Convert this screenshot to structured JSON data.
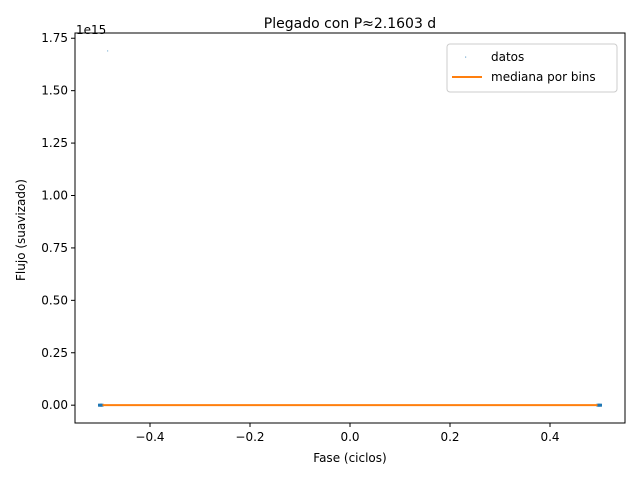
{
  "chart_data": {
    "type": "scatter",
    "title": "Plegado con P≈2.1603 d",
    "xlabel": "Fase (ciclos)",
    "ylabel": "Flujo (suavizado)",
    "y_offset_label": "1e15",
    "y_scale": 1000000000000000.0,
    "xlim": [
      -0.55,
      0.55
    ],
    "ylim": [
      -0.085,
      1.775
    ],
    "x_ticks": [
      -0.4,
      -0.2,
      0.0,
      0.2,
      0.4
    ],
    "x_tick_labels": [
      "−0.4",
      "−0.2",
      "0.0",
      "0.2",
      "0.4"
    ],
    "y_ticks": [
      0.0,
      0.25,
      0.5,
      0.75,
      1.0,
      1.25,
      1.5,
      1.75
    ],
    "y_tick_labels": [
      "0.00",
      "0.25",
      "0.50",
      "0.75",
      "1.00",
      "1.25",
      "1.50",
      "1.75"
    ],
    "grid": false,
    "legend_position": "top-right",
    "series": [
      {
        "name": "datos",
        "kind": "points",
        "color": "#1f77b4",
        "points": [
          {
            "x": -0.485,
            "y": 1.69
          },
          {
            "x": -0.5,
            "y": 0.0
          },
          {
            "x": -0.497,
            "y": 0.0
          },
          {
            "x": 0.497,
            "y": 0.0
          },
          {
            "x": 0.5,
            "y": 0.0
          }
        ]
      },
      {
        "name": "mediana por bins",
        "kind": "line",
        "color": "#ff7f0e",
        "points": [
          {
            "x": -0.495,
            "y": 0.0
          },
          {
            "x": 0.495,
            "y": 0.0
          }
        ]
      }
    ]
  }
}
